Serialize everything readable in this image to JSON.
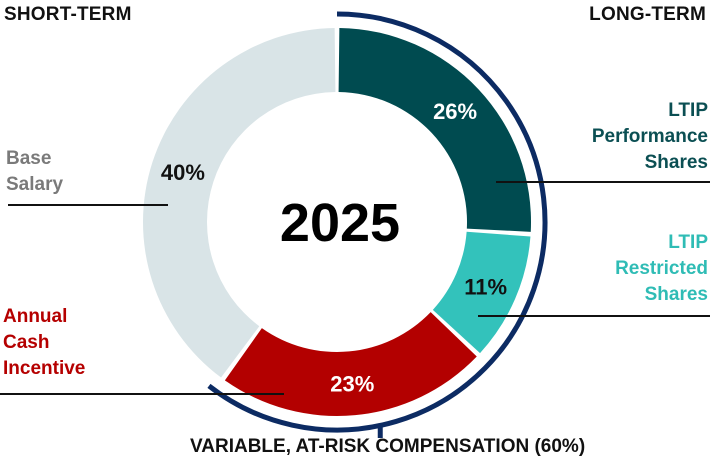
{
  "headers": {
    "short_term": "SHORT-TERM",
    "long_term": "LONG-TERM"
  },
  "center_label": "2025",
  "footer": "VARIABLE, AT-RISK COMPENSATION (60%)",
  "labels": {
    "base_salary": [
      "Base",
      "Salary"
    ],
    "annual_cash": [
      "Annual",
      "Cash",
      "Incentive"
    ],
    "ltip_performance": [
      "LTIP",
      "Performance",
      "Shares"
    ],
    "ltip_restricted": [
      "LTIP",
      "Restricted",
      "Shares"
    ]
  },
  "chart_data": {
    "type": "pie",
    "donut": true,
    "title": "",
    "slices": [
      {
        "name": "LTIP Performance Shares",
        "value": 26,
        "label": "26%",
        "color": "#004b50",
        "label_color": "#ffffff"
      },
      {
        "name": "LTIP Restricted Shares",
        "value": 11,
        "label": "11%",
        "color": "#33c2bb",
        "label_color": "#111111"
      },
      {
        "name": "Annual Cash Incentive",
        "value": 23,
        "label": "23%",
        "color": "#b30000",
        "label_color": "#ffffff"
      },
      {
        "name": "Base Salary",
        "value": 40,
        "label": "40%",
        "color": "#d9e4e7",
        "label_color": "#111111"
      }
    ],
    "variable_share_percent": 60,
    "bracket_color": "#0c2b63"
  }
}
